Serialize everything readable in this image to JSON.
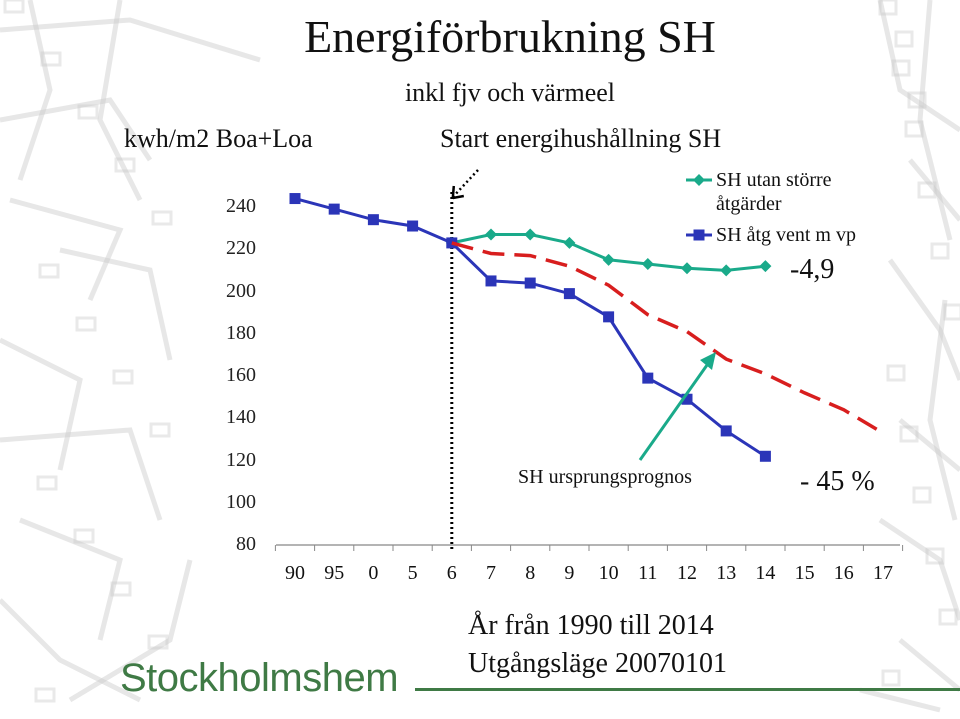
{
  "title": "Energiförbrukning SH",
  "subtitle": "inkl fjv och värmeel",
  "footer": {
    "line1": "År från 1990 till 2014",
    "line2": "Utgångsläge 20070101"
  },
  "logo": "Stockholmshem",
  "colors": {
    "sh_utan": "#1aaa8a",
    "sh_atg": "#2b35b8",
    "prognos": "#d81e1e",
    "arrow": "#1aaa8a",
    "logo": "#3f7a45",
    "background_map": "#c9c9c9"
  },
  "chart_data": {
    "type": "line",
    "title": "Energiförbrukning SH",
    "subtitle": "inkl fjv och värmeel",
    "ylabel": "kwh/m2 Boa+Loa",
    "xlabel": "År från 1990 till 2014",
    "ylim": [
      80,
      240
    ],
    "yticks": [
      80,
      100,
      120,
      140,
      160,
      180,
      200,
      220,
      240
    ],
    "categories": [
      "90",
      "95",
      "0",
      "5",
      "6",
      "7",
      "8",
      "9",
      "10",
      "11",
      "12",
      "13",
      "14",
      "15",
      "16",
      "17"
    ],
    "series": [
      {
        "name": "SH utan större åtgärder",
        "color": "#1aaa8a",
        "marker": "diamond",
        "values": [
          null,
          null,
          null,
          null,
          223,
          227,
          227,
          223,
          215,
          213,
          211,
          210,
          212,
          null,
          null,
          null
        ]
      },
      {
        "name": "SH åtg vent m vp",
        "color": "#2b35b8",
        "marker": "square",
        "values": [
          244,
          239,
          234,
          231,
          223,
          205,
          204,
          199,
          188,
          159,
          149,
          134,
          122,
          null,
          null,
          null
        ]
      },
      {
        "name": "SH ursprungsprognos",
        "color": "#d81e1e",
        "marker": "none",
        "dashed": true,
        "values": [
          null,
          null,
          null,
          null,
          223,
          218,
          217,
          212,
          203,
          189,
          181,
          168,
          161,
          152,
          144,
          133
        ]
      }
    ],
    "annotations": {
      "start": "Start energihushållning SH",
      "reduction_small": "-4,9",
      "reduction_large": "- 45 %",
      "prognos_label": "SH ursprungsprognos"
    },
    "legend": {
      "position": "top-right",
      "entries": [
        {
          "label_line1": "SH utan större",
          "label_line2": "åtgärder"
        },
        {
          "label_line1": "SH åtg vent m vp"
        }
      ]
    },
    "grid": false
  }
}
